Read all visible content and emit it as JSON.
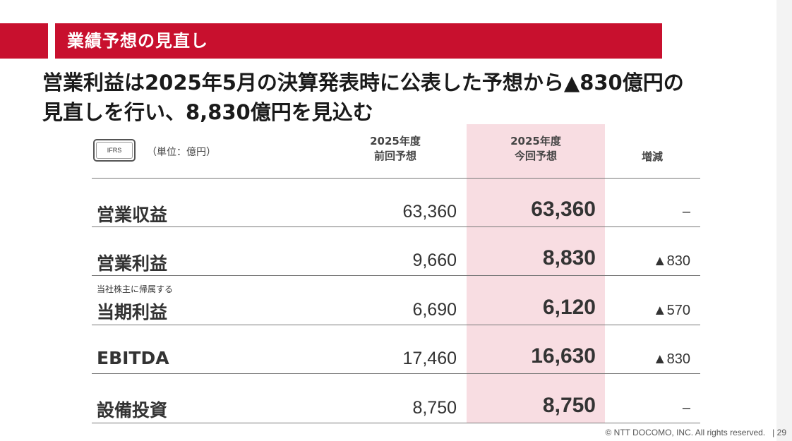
{
  "section_title": "業績予想の見直し",
  "headline": {
    "line1": "営業利益は2025年5月の決算発表時に公表した予想から▲830億円の",
    "line2": "見直しを行い、8,830億円を見込む"
  },
  "table": {
    "badge": "IFRS",
    "unit": "（単位：億円）",
    "columns": {
      "prev_line1": "2025年度",
      "prev_line2": "前回予想",
      "curr_line1": "2025年度",
      "curr_line2": "今回予想",
      "diff": "増減"
    },
    "rows": [
      {
        "sublabel": "",
        "label": "営業収益",
        "prev": "63,360",
        "curr": "63,360",
        "diff": "–"
      },
      {
        "sublabel": "",
        "label": "営業利益",
        "prev": "9,660",
        "curr": "8,830",
        "diff": "▲830"
      },
      {
        "sublabel": "当社株主に帰属する",
        "label": "当期利益",
        "prev": "6,690",
        "curr": "6,120",
        "diff": "▲570"
      },
      {
        "sublabel": "",
        "label": "EBITDA",
        "prev": "17,460",
        "curr": "16,630",
        "diff": "▲830"
      },
      {
        "sublabel": "",
        "label": "設備投資",
        "prev": "8,750",
        "curr": "8,750",
        "diff": "–"
      }
    ]
  },
  "footer": {
    "copyright": "© NTT DOCOMO, INC.  All rights reserved.",
    "separator": "|",
    "page": "29"
  },
  "colors": {
    "accent": "#c8102e",
    "highlight": "#f8dde2"
  }
}
